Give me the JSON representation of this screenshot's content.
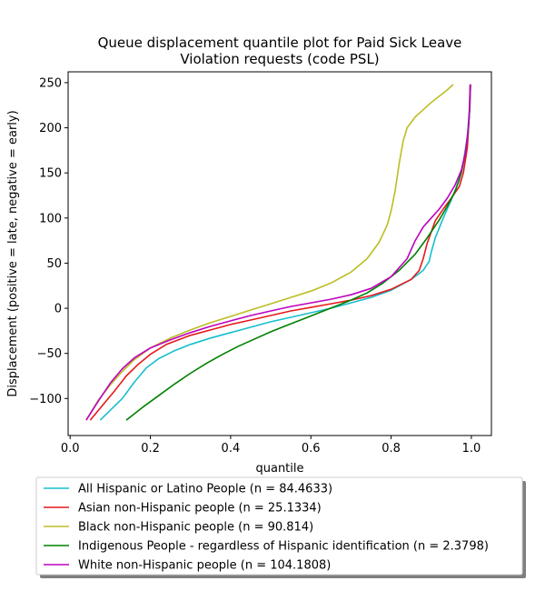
{
  "chart_data": {
    "type": "line",
    "title_lines": [
      "Queue displacement quantile plot for Paid Sick Leave",
      "Violation  requests (code PSL)"
    ],
    "xlabel": "quantile",
    "ylabel": "Displacement (positive = late, negative = early)",
    "xlim": [
      -0.005,
      1.05
    ],
    "ylim": [
      -141,
      262
    ],
    "xticks": [
      0.0,
      0.2,
      0.4,
      0.6,
      0.8,
      1.0
    ],
    "xtick_labels": [
      "0.0",
      "0.2",
      "0.4",
      "0.6",
      "0.8",
      "1.0"
    ],
    "yticks": [
      -100,
      -50,
      0,
      50,
      100,
      150,
      200,
      250
    ],
    "ytick_labels": [
      "−100",
      "−50",
      "0",
      "50",
      "100",
      "150",
      "200",
      "250"
    ],
    "grid": false,
    "legend_position": "below-plot",
    "series": [
      {
        "name": "All Hispanic or Latino People (n = 84.4633)",
        "color": "#17becf",
        "x": [
          0.075,
          0.1,
          0.13,
          0.16,
          0.19,
          0.22,
          0.26,
          0.3,
          0.35,
          0.4,
          0.45,
          0.5,
          0.55,
          0.6,
          0.65,
          0.7,
          0.75,
          0.8,
          0.85,
          0.88,
          0.895,
          0.9,
          0.91,
          0.93,
          0.95,
          0.97,
          0.98,
          0.99,
          0.995,
          0.997
        ],
        "y": [
          -124,
          -113,
          -100,
          -82,
          -66,
          -56,
          -47,
          -40,
          -33,
          -27,
          -21,
          -15,
          -10,
          -5,
          0,
          6,
          12,
          20,
          32,
          42,
          52,
          62,
          78,
          100,
          120,
          142,
          162,
          190,
          220,
          248
        ]
      },
      {
        "name": "Asian non-Hispanic people (n = 25.1334)",
        "color": "#e41a1c",
        "x": [
          0.05,
          0.08,
          0.11,
          0.14,
          0.17,
          0.2,
          0.24,
          0.3,
          0.35,
          0.4,
          0.45,
          0.5,
          0.55,
          0.6,
          0.65,
          0.7,
          0.75,
          0.8,
          0.85,
          0.87,
          0.88,
          0.89,
          0.91,
          0.93,
          0.95,
          0.97,
          0.98,
          0.99,
          0.995,
          0.997
        ],
        "y": [
          -124,
          -108,
          -92,
          -75,
          -62,
          -51,
          -40,
          -30,
          -24,
          -18,
          -13,
          -8,
          -3,
          1,
          5,
          9,
          14,
          21,
          32,
          42,
          55,
          72,
          97,
          110,
          122,
          135,
          150,
          178,
          215,
          248
        ]
      },
      {
        "name": "Black non-Hispanic people (n = 90.814)",
        "color": "#bcbd22",
        "x": [
          0.04,
          0.07,
          0.1,
          0.13,
          0.16,
          0.2,
          0.25,
          0.3,
          0.35,
          0.4,
          0.45,
          0.5,
          0.55,
          0.6,
          0.65,
          0.7,
          0.74,
          0.77,
          0.79,
          0.8,
          0.81,
          0.82,
          0.83,
          0.84,
          0.86,
          0.88,
          0.9,
          0.92,
          0.94,
          0.955
        ],
        "y": [
          -124,
          -102,
          -85,
          -70,
          -57,
          -44,
          -33,
          -24,
          -16,
          -9,
          -2,
          5,
          12,
          19,
          28,
          40,
          55,
          73,
          92,
          108,
          130,
          160,
          185,
          200,
          212,
          220,
          228,
          235,
          242,
          248
        ]
      },
      {
        "name": "Indigenous People - regardless of Hispanic identification (n = 2.3798)",
        "color": "#008000",
        "x": [
          0.14,
          0.18,
          0.22,
          0.26,
          0.3,
          0.34,
          0.38,
          0.42,
          0.46,
          0.5,
          0.54,
          0.58,
          0.62,
          0.66,
          0.7,
          0.74,
          0.78,
          0.82,
          0.86,
          0.89,
          0.92,
          0.94,
          0.96,
          0.975,
          0.985,
          0.992,
          0.996,
          0.998
        ],
        "y": [
          -124,
          -110,
          -97,
          -84,
          -72,
          -61,
          -51,
          -42,
          -34,
          -26,
          -19,
          -12,
          -5,
          2,
          9,
          17,
          28,
          42,
          60,
          78,
          98,
          113,
          130,
          150,
          172,
          195,
          220,
          248
        ]
      },
      {
        "name": "White non-Hispanic people (n = 104.1808)",
        "color": "#bf00bf",
        "x": [
          0.04,
          0.07,
          0.1,
          0.13,
          0.16,
          0.2,
          0.25,
          0.3,
          0.35,
          0.4,
          0.45,
          0.5,
          0.55,
          0.6,
          0.65,
          0.7,
          0.75,
          0.8,
          0.84,
          0.86,
          0.88,
          0.9,
          0.92,
          0.94,
          0.96,
          0.975,
          0.985,
          0.992,
          0.996,
          0.998
        ],
        "y": [
          -124,
          -103,
          -83,
          -67,
          -55,
          -44,
          -35,
          -27,
          -20,
          -14,
          -8,
          -3,
          2,
          6,
          10,
          15,
          22,
          35,
          55,
          75,
          90,
          100,
          110,
          122,
          137,
          153,
          172,
          198,
          222,
          248
        ]
      }
    ]
  }
}
